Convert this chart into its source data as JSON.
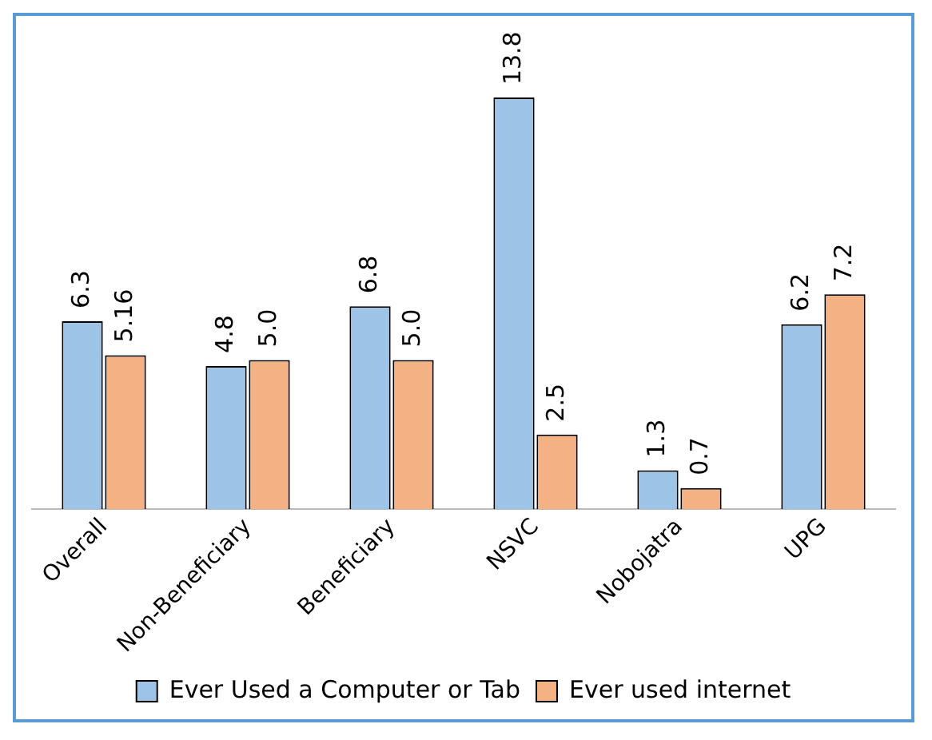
{
  "chart_data": {
    "type": "bar",
    "categories": [
      "Overall",
      "Non-Beneficiary",
      "Beneficiary",
      "NSVC",
      "Nobojatra",
      "UPG"
    ],
    "series": [
      {
        "name": "Ever Used a Computer or Tab",
        "color": "#9dc3e6",
        "values": [
          6.3,
          4.8,
          6.8,
          13.8,
          1.3,
          6.2
        ],
        "value_labels": [
          "6.3",
          "4.8",
          "6.8",
          "13.8",
          "1.3",
          "6.2"
        ]
      },
      {
        "name": "Ever used internet",
        "color": "#f4b183",
        "values": [
          5.16,
          5.0,
          5.0,
          2.5,
          0.7,
          7.2
        ],
        "value_labels": [
          "5.16",
          "5.0",
          "5.0",
          "2.5",
          "0.7",
          "7.2"
        ]
      }
    ],
    "legend": "bottom",
    "grid": false
  }
}
